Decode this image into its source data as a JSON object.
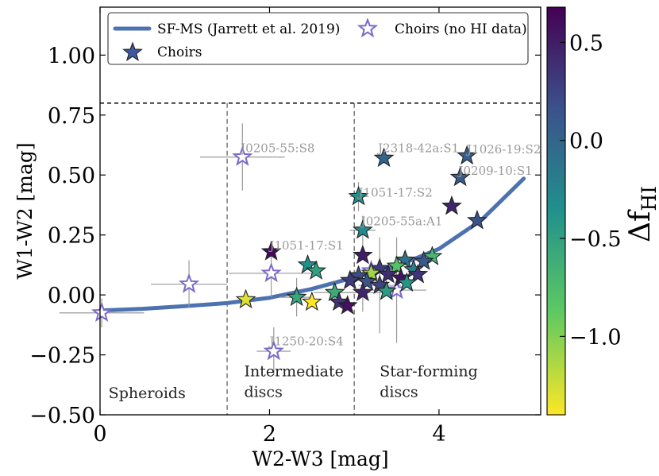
{
  "chart_data": {
    "type": "scatter",
    "title": "",
    "xlabel": "W2-W3 [mag]",
    "ylabel": "W1-W2 [mag]",
    "xlim": [
      0,
      5.2
    ],
    "ylim": [
      -0.5,
      1.2
    ],
    "x_ticks": [
      0,
      2,
      4
    ],
    "y_ticks": [
      -0.5,
      -0.25,
      0.0,
      0.25,
      0.5,
      0.75,
      1.0
    ],
    "hline": 0.8,
    "vlines": [
      1.5,
      3.0
    ],
    "region_labels": [
      {
        "id": "spheroids",
        "lines": [
          "Spheroids"
        ],
        "x": 0.1,
        "y": -0.43
      },
      {
        "id": "intermediate",
        "lines": [
          "Intermediate",
          "discs"
        ],
        "x": 1.7,
        "y": -0.34
      },
      {
        "id": "starforming",
        "lines": [
          "Star-forming",
          "discs"
        ],
        "x": 3.3,
        "y": -0.34
      }
    ],
    "legend": {
      "position": "top-left",
      "entries": [
        "SF-MS (Jarrett et al. 2019)",
        "Choirs",
        "Choirs (no HI data)"
      ]
    },
    "colorbar": {
      "label_main": "Δf",
      "label_sub": "HI",
      "range": [
        -1.4,
        0.68
      ],
      "ticks": [
        0.5,
        0.0,
        -0.5,
        -1.0
      ],
      "colors": [
        "#fde725",
        "#5ec962",
        "#21918c",
        "#3b528b",
        "#440154"
      ]
    },
    "sf_ms_curve": {
      "name": "SF-MS (Jarrett et al. 2019)",
      "color": "#4c72b0",
      "x": [
        0,
        0.5,
        1.0,
        1.5,
        2.0,
        2.5,
        3.0,
        3.5,
        4.0,
        4.5,
        5.0
      ],
      "y": [
        -0.065,
        -0.058,
        -0.047,
        -0.034,
        -0.012,
        0.025,
        0.073,
        0.12,
        0.192,
        0.312,
        0.485
      ]
    },
    "choirs": [
      {
        "x": 3.35,
        "y": 0.57,
        "c": 0.0
      },
      {
        "x": 4.33,
        "y": 0.58,
        "c": 0.05
      },
      {
        "x": 4.25,
        "y": 0.49,
        "c": 0.08
      },
      {
        "x": 3.05,
        "y": 0.41,
        "c": -0.35
      },
      {
        "x": 4.15,
        "y": 0.37,
        "c": 0.45
      },
      {
        "x": 4.45,
        "y": 0.31,
        "c": 0.15
      },
      {
        "x": 3.1,
        "y": 0.27,
        "c": -0.3
      },
      {
        "x": 2.02,
        "y": 0.18,
        "c": 0.62
      },
      {
        "x": 3.1,
        "y": 0.165,
        "c": 0.5
      },
      {
        "x": 2.45,
        "y": 0.125,
        "c": -0.35
      },
      {
        "x": 2.55,
        "y": 0.1,
        "c": -0.5
      },
      {
        "x": 3.92,
        "y": 0.16,
        "c": -0.7
      },
      {
        "x": 3.82,
        "y": 0.14,
        "c": 0.1
      },
      {
        "x": 3.6,
        "y": 0.145,
        "c": -0.1
      },
      {
        "x": 3.5,
        "y": 0.12,
        "c": -0.8
      },
      {
        "x": 3.3,
        "y": 0.11,
        "c": 0.3
      },
      {
        "x": 3.7,
        "y": 0.105,
        "c": -0.2
      },
      {
        "x": 3.2,
        "y": 0.09,
        "c": -1.1
      },
      {
        "x": 3.4,
        "y": 0.085,
        "c": 0.4
      },
      {
        "x": 3.75,
        "y": 0.085,
        "c": 0.35
      },
      {
        "x": 3.05,
        "y": 0.08,
        "c": 0.2
      },
      {
        "x": 3.55,
        "y": 0.07,
        "c": 0.55
      },
      {
        "x": 3.15,
        "y": 0.055,
        "c": 0.15
      },
      {
        "x": 3.62,
        "y": 0.05,
        "c": -0.4
      },
      {
        "x": 3.3,
        "y": 0.04,
        "c": 0.25
      },
      {
        "x": 3.1,
        "y": 0.01,
        "c": 0.45
      },
      {
        "x": 3.38,
        "y": 0.015,
        "c": -0.45
      },
      {
        "x": 1.72,
        "y": -0.02,
        "c": -1.3
      },
      {
        "x": 2.32,
        "y": -0.01,
        "c": -0.55
      },
      {
        "x": 2.5,
        "y": -0.03,
        "c": -1.4
      },
      {
        "x": 2.77,
        "y": 0.01,
        "c": -0.6
      },
      {
        "x": 2.82,
        "y": -0.03,
        "c": 0.35
      },
      {
        "x": 2.92,
        "y": -0.045,
        "c": 0.58
      },
      {
        "x": 2.95,
        "y": 0.06,
        "c": 0.3
      }
    ],
    "choirs_nohi": [
      {
        "x": 1.68,
        "y": 0.575
      },
      {
        "x": 1.05,
        "y": 0.045
      },
      {
        "x": 2.02,
        "y": 0.09
      },
      {
        "x": 0.02,
        "y": -0.075
      },
      {
        "x": 2.05,
        "y": -0.235
      },
      {
        "x": 3.5,
        "y": 0.02
      },
      {
        "x": 3.2,
        "y": 0.1
      }
    ],
    "errorbars": [
      {
        "x": 1.68,
        "y": 0.575,
        "xe": 0.5,
        "ye": 0.14
      },
      {
        "x": 1.05,
        "y": 0.045,
        "xe": 0.45,
        "ye": 0.1
      },
      {
        "x": 2.02,
        "y": 0.09,
        "xe": 0.5,
        "ye": 0.1
      },
      {
        "x": 0.02,
        "y": -0.075,
        "xe": 0.5,
        "ye": 0.06
      },
      {
        "x": 2.05,
        "y": -0.235,
        "xe": 0.2,
        "ye": 0.1
      },
      {
        "x": 3.5,
        "y": 0.02,
        "xe": 0.35,
        "ye": 0.22
      },
      {
        "x": 3.05,
        "y": 0.41,
        "xe": 0.1,
        "ye": 0.06
      },
      {
        "x": 3.1,
        "y": 0.27,
        "xe": 0.15,
        "ye": 0.06
      },
      {
        "x": 2.32,
        "y": -0.01,
        "xe": 0.2,
        "ye": 0.08
      },
      {
        "x": 2.77,
        "y": 0.01,
        "xe": 0.25,
        "ye": 0.05
      },
      {
        "x": 3.3,
        "y": 0.04,
        "xe": 0.25,
        "ye": 0.2
      },
      {
        "x": 3.1,
        "y": 0.01,
        "xe": 0.25,
        "ye": 0.08
      }
    ],
    "annotations": [
      {
        "text": "J0205-55:S8",
        "x": 1.66,
        "y": 0.595
      },
      {
        "text": "J2318-42a:S1",
        "x": 3.28,
        "y": 0.595
      },
      {
        "text": "J1026-19:S2",
        "x": 4.33,
        "y": 0.59
      },
      {
        "text": "J0209-10:S1",
        "x": 4.23,
        "y": 0.5
      },
      {
        "text": "J1051-17:S2",
        "x": 3.05,
        "y": 0.41
      },
      {
        "text": "J0205-55a:A1",
        "x": 3.08,
        "y": 0.29
      },
      {
        "text": "J1051-17:S1",
        "x": 2.0,
        "y": 0.19
      },
      {
        "text": "J1250-20:S4",
        "x": 2.0,
        "y": -0.21
      }
    ]
  }
}
